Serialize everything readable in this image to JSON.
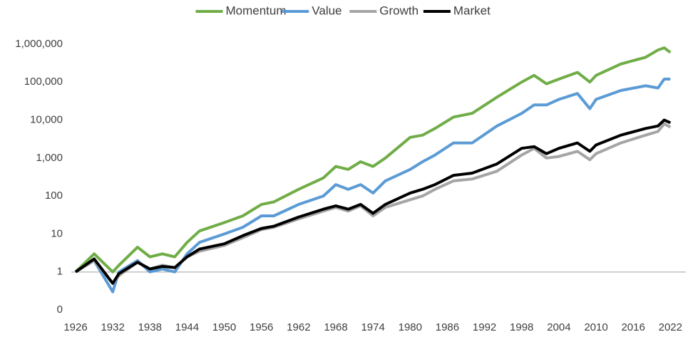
{
  "chart_data": {
    "type": "line",
    "log_scale": true,
    "legend": "top",
    "x": [
      1926,
      1929,
      1932,
      1933,
      1936,
      1938,
      1940,
      1942,
      1944,
      1946,
      1950,
      1953,
      1956,
      1958,
      1962,
      1966,
      1968,
      1970,
      1972,
      1974,
      1976,
      1980,
      1982,
      1984,
      1987,
      1990,
      1994,
      1998,
      2000,
      2002,
      2004,
      2007,
      2009,
      2010,
      2014,
      2018,
      2020,
      2021,
      2022
    ],
    "series": [
      {
        "name": "Momentum",
        "color": "#70ad47",
        "values": [
          1,
          3,
          1,
          1.5,
          4.5,
          2.5,
          3,
          2.5,
          6,
          12,
          20,
          30,
          60,
          70,
          150,
          300,
          600,
          500,
          800,
          600,
          1000,
          3500,
          4000,
          6000,
          12000,
          15000,
          40000,
          100000,
          150000,
          90000,
          120000,
          180000,
          100000,
          150000,
          300000,
          450000,
          700000,
          800000,
          600000
        ]
      },
      {
        "name": "Value",
        "color": "#5b9bd5",
        "values": [
          1,
          2,
          0.3,
          1,
          2,
          1,
          1.2,
          1,
          3,
          6,
          10,
          15,
          30,
          30,
          60,
          100,
          200,
          150,
          200,
          120,
          250,
          500,
          800,
          1200,
          2500,
          2500,
          7000,
          15000,
          25000,
          25000,
          35000,
          50000,
          20000,
          35000,
          60000,
          80000,
          70000,
          120000,
          120000
        ]
      },
      {
        "name": "Growth",
        "color": "#a5a5a5",
        "values": [
          1,
          2,
          0.5,
          0.8,
          1.8,
          1.2,
          1.5,
          1.3,
          2.5,
          3.5,
          5,
          8,
          13,
          15,
          25,
          40,
          50,
          40,
          55,
          30,
          50,
          80,
          100,
          150,
          250,
          280,
          450,
          1200,
          1800,
          1000,
          1100,
          1500,
          900,
          1300,
          2500,
          4000,
          5000,
          8000,
          6500
        ]
      },
      {
        "name": "Market",
        "color": "#000000",
        "values": [
          1,
          2.2,
          0.5,
          0.9,
          1.8,
          1.2,
          1.4,
          1.3,
          2.5,
          4,
          5.5,
          9,
          14,
          16,
          28,
          45,
          55,
          45,
          60,
          35,
          60,
          120,
          150,
          200,
          350,
          400,
          700,
          1800,
          2000,
          1300,
          1800,
          2500,
          1500,
          2200,
          4000,
          6000,
          7000,
          10000,
          8500
        ]
      }
    ],
    "xlim": [
      1926,
      2023
    ],
    "xticks": [
      1926,
      1932,
      1938,
      1944,
      1950,
      1956,
      1962,
      1968,
      1974,
      1980,
      1986,
      1992,
      1998,
      2004,
      2010,
      2016,
      2022
    ],
    "ylim": [
      0.1,
      10000000
    ],
    "yticks": [
      {
        "value": 0.1,
        "label": "0"
      },
      1,
      10,
      100,
      {
        "value": 1000,
        "label": "1,000"
      },
      {
        "value": 10000,
        "label": "10,000"
      },
      {
        "value": 100000,
        "label": "100,000"
      },
      {
        "value": 1000000,
        "label": "1,000,000"
      }
    ],
    "axis_crossing": 1
  }
}
